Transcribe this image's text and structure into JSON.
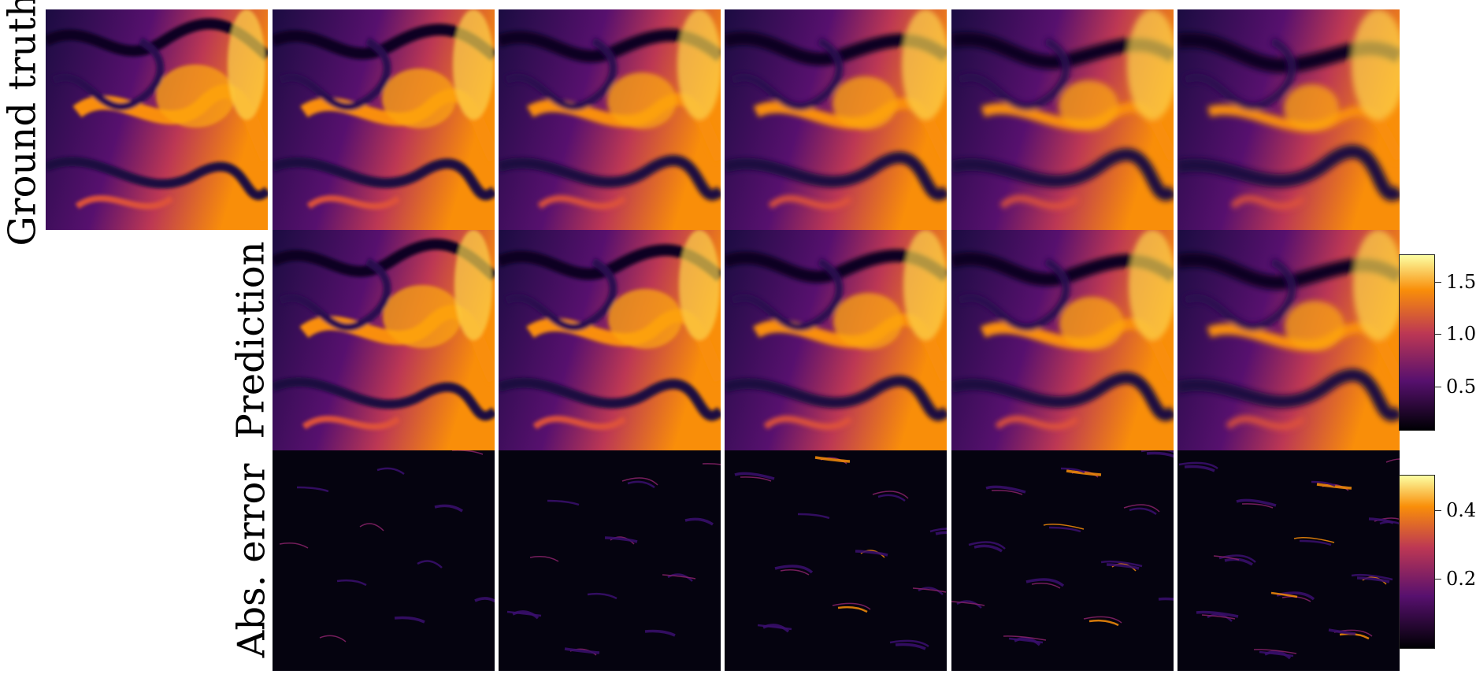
{
  "rows": {
    "ground_truth": "Ground truth",
    "prediction": "Prediction",
    "abs_error": "Abs. error"
  },
  "colorbars": {
    "field": {
      "colormap": "inferno",
      "ticks": [
        "1.5",
        "1.0",
        "0.5"
      ],
      "tick_values": [
        1.5,
        1.0,
        0.5
      ],
      "range": [
        0.05,
        1.75
      ]
    },
    "error": {
      "colormap": "inferno",
      "ticks": [
        "0.4",
        "0.2"
      ],
      "tick_values": [
        0.4,
        0.2
      ],
      "range": [
        0.0,
        0.5
      ]
    }
  },
  "colors": {
    "inferno_dark": "#000004",
    "inferno_purple": "#57106e",
    "inferno_red": "#bc3754",
    "inferno_orange": "#f98e09",
    "inferno_yellow": "#fcffa4"
  }
}
